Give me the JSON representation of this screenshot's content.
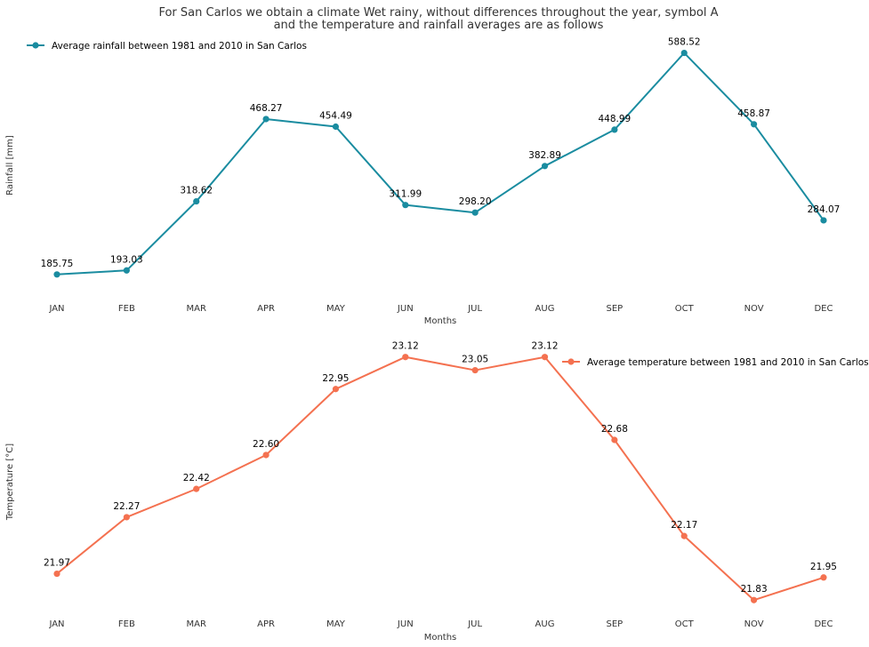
{
  "title_lines": [
    "For San Carlos we obtain a climate Wet rainy, without differences throughout the year, symbol A",
    "and the temperature and rainfall averages are as follows"
  ],
  "chart_data": [
    {
      "type": "line",
      "categories": [
        "JAN",
        "FEB",
        "MAR",
        "APR",
        "MAY",
        "JUN",
        "JUL",
        "AUG",
        "SEP",
        "OCT",
        "NOV",
        "DEC"
      ],
      "series": [
        {
          "name": "Average rainfall between 1981 and 2010 in San Carlos",
          "values": [
            185.75,
            193.03,
            318.62,
            468.27,
            454.49,
            311.99,
            298.2,
            382.89,
            448.99,
            588.52,
            458.87,
            284.07
          ],
          "labels": [
            "185.75",
            "193.03",
            "318.62",
            "468.27",
            "454.49",
            "311.99",
            "298.20",
            "382.89",
            "448.99",
            "588.52",
            "458.87",
            "284.07"
          ],
          "color": "#1a8ca0",
          "marker": "circle"
        }
      ],
      "xlabel": "Months",
      "ylabel": "Rainfall [mm]",
      "ylim": [
        145,
        625
      ],
      "grid": false,
      "legend": "top-left"
    },
    {
      "type": "line",
      "categories": [
        "JAN",
        "FEB",
        "MAR",
        "APR",
        "MAY",
        "JUN",
        "JUL",
        "AUG",
        "SEP",
        "OCT",
        "NOV",
        "DEC"
      ],
      "series": [
        {
          "name": "Average temperature between 1981 and 2010 in San Carlos",
          "values": [
            21.97,
            22.27,
            22.42,
            22.6,
            22.95,
            23.12,
            23.05,
            23.12,
            22.68,
            22.17,
            21.83,
            21.95
          ],
          "labels": [
            "21.97",
            "22.27",
            "22.42",
            "22.60",
            "22.95",
            "23.12",
            "23.05",
            "23.12",
            "22.68",
            "22.17",
            "21.83",
            "21.95"
          ],
          "color": "#f47150",
          "marker": "circle"
        }
      ],
      "xlabel": "Months",
      "ylabel": "Temperature [°C]",
      "ylim": [
        21.765,
        23.18
      ],
      "grid": false,
      "legend": "top-right"
    }
  ]
}
